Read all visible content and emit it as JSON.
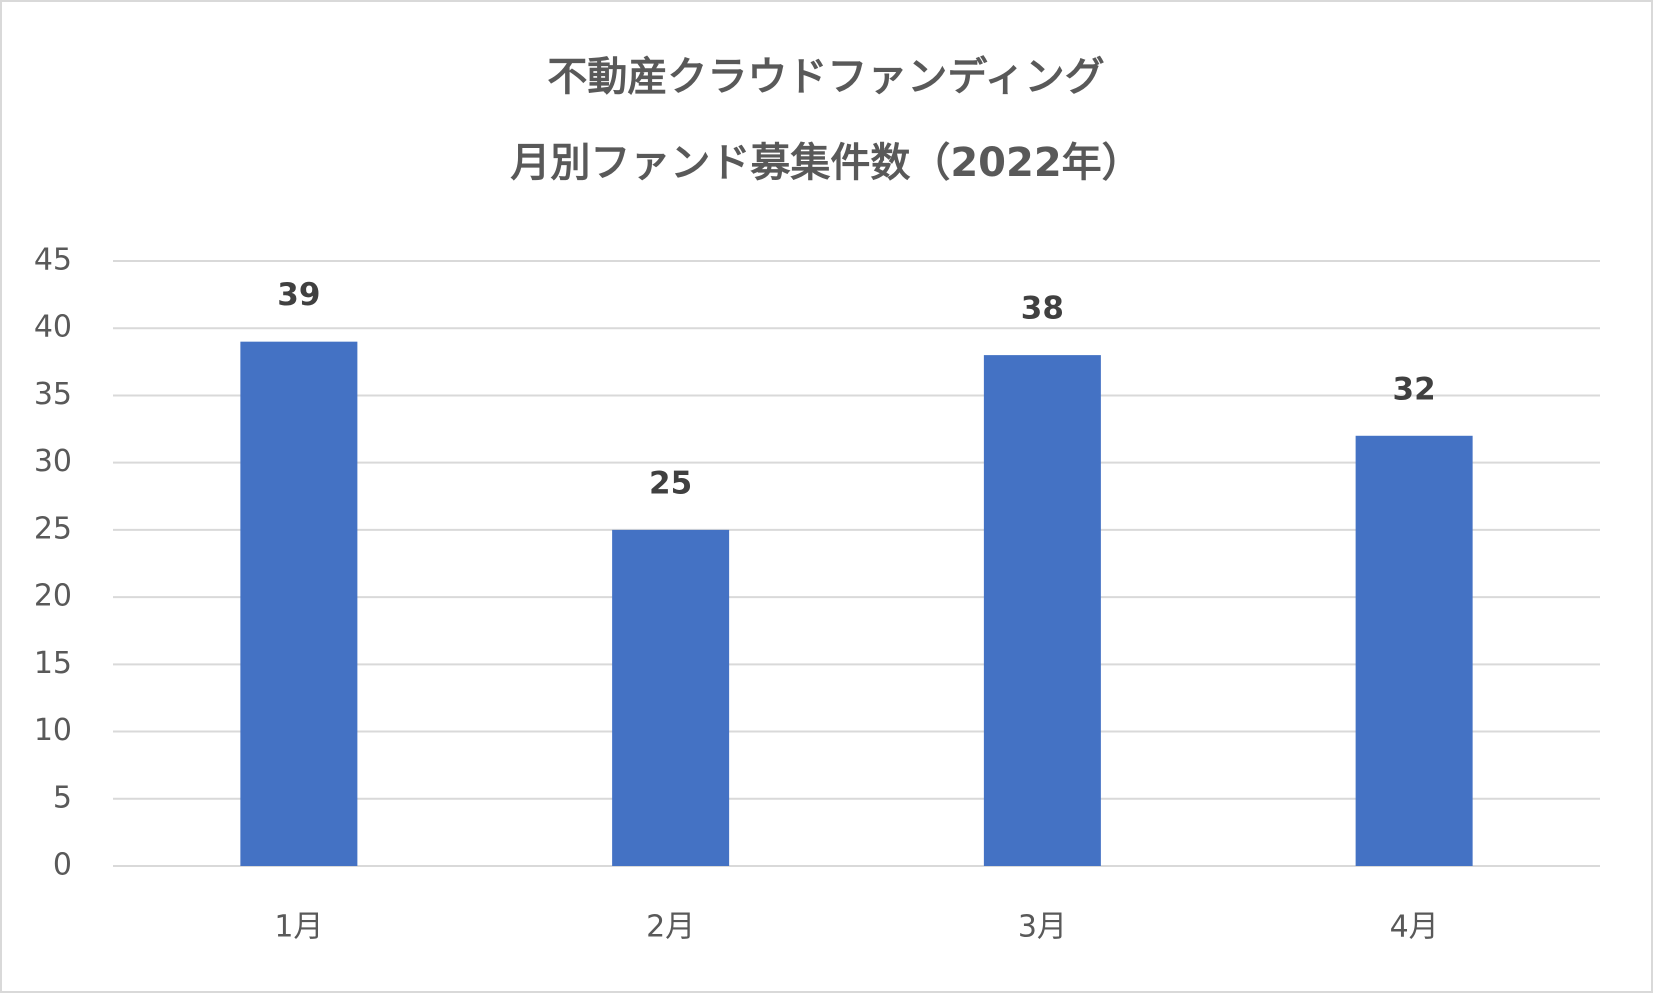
{
  "chart_data": {
    "type": "bar",
    "title": [
      "不動産クラウドファンディング",
      "月別ファンド募集件数（2022年）"
    ],
    "categories": [
      "1月",
      "2月",
      "3月",
      "4月"
    ],
    "values": [
      39,
      25,
      38,
      32
    ],
    "color": "#4472c4",
    "ylim": [
      0,
      45
    ],
    "yticks": [
      0,
      5,
      10,
      15,
      20,
      25,
      30,
      35,
      40,
      45
    ],
    "grid": true
  }
}
